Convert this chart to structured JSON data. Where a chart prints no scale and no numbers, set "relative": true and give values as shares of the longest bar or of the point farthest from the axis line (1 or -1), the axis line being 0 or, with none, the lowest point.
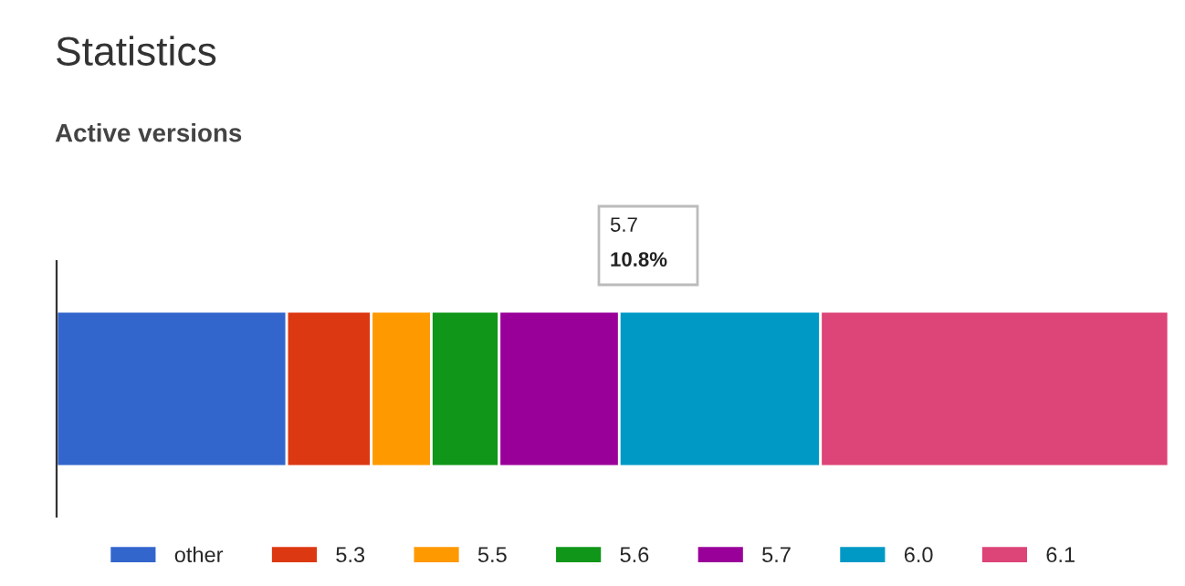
{
  "chart_data": {
    "type": "bar",
    "orientation": "horizontal",
    "stacked": true,
    "relative": true,
    "title": "Statistics",
    "subtitle": "Active versions",
    "categories": [
      null
    ],
    "series": [
      {
        "name": "other",
        "color": "#3366cc",
        "values": [
          0.207
        ]
      },
      {
        "name": "5.3",
        "color": "#dc3912",
        "values": [
          0.076
        ]
      },
      {
        "name": "5.5",
        "color": "#ff9900",
        "values": [
          0.054
        ]
      },
      {
        "name": "5.6",
        "color": "#109618",
        "values": [
          0.061
        ]
      },
      {
        "name": "5.7",
        "color": "#990099",
        "values": [
          0.108
        ]
      },
      {
        "name": "6.0",
        "color": "#0099c6",
        "values": [
          0.181
        ]
      },
      {
        "name": "6.1",
        "color": "#dd4477",
        "values": [
          0.313
        ]
      }
    ],
    "annotations": [
      "5.7",
      "10.8%"
    ],
    "legend": "bottom"
  }
}
